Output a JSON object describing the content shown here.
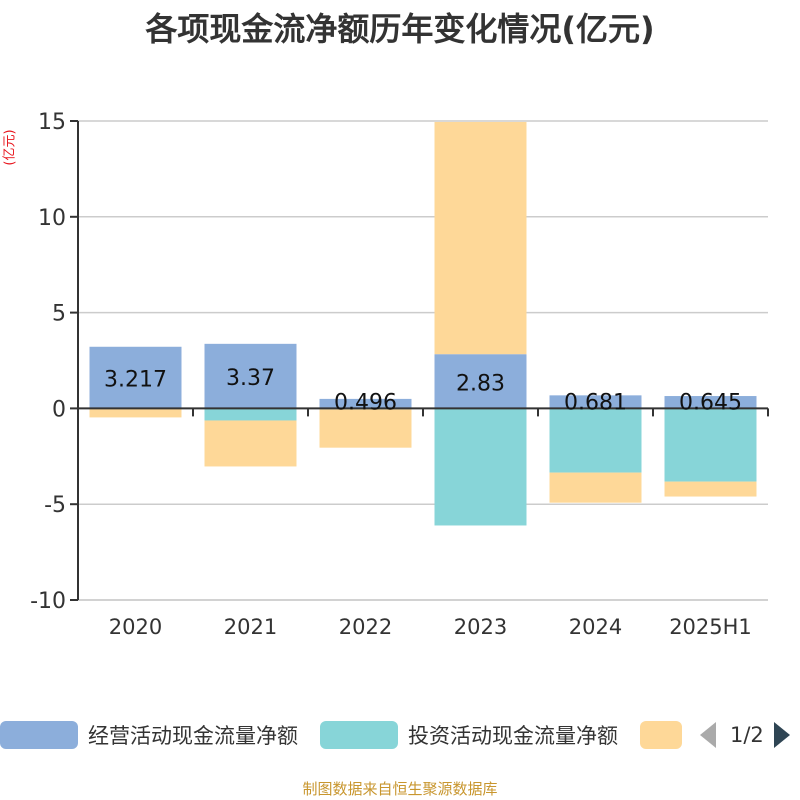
{
  "chart_data": {
    "type": "bar",
    "stacked": true,
    "title": "各项现金流净额历年变化情况(亿元)",
    "ylabel": "(亿元)",
    "xlabel": "",
    "ylim": [
      -10,
      15
    ],
    "yticks": [
      15,
      10,
      5,
      0,
      -5,
      -10
    ],
    "grid": true,
    "categories": [
      "2020",
      "2021",
      "2022",
      "2023",
      "2024",
      "2025H1"
    ],
    "series": [
      {
        "name": "经营活动现金流量净额",
        "color": "#8caedb",
        "values": [
          3.217,
          3.37,
          0.496,
          2.83,
          0.681,
          0.645
        ],
        "labels": [
          "3.217",
          "3.37",
          "0.496",
          "2.83",
          "0.681",
          "0.645"
        ]
      },
      {
        "name": "投资活动现金流量净额",
        "color": "#87d5d8",
        "values": [
          0,
          -0.63,
          -0.05,
          -6.11,
          -3.35,
          -3.82
        ]
      },
      {
        "name": "",
        "color": "#fed898",
        "values": [
          -0.47,
          -2.4,
          -2.0,
          12.12,
          -1.57,
          -0.78
        ]
      }
    ],
    "legend_position": "bottom"
  },
  "legend": {
    "page": "1/2"
  },
  "source": "制图数据来自恒生聚源数据库"
}
